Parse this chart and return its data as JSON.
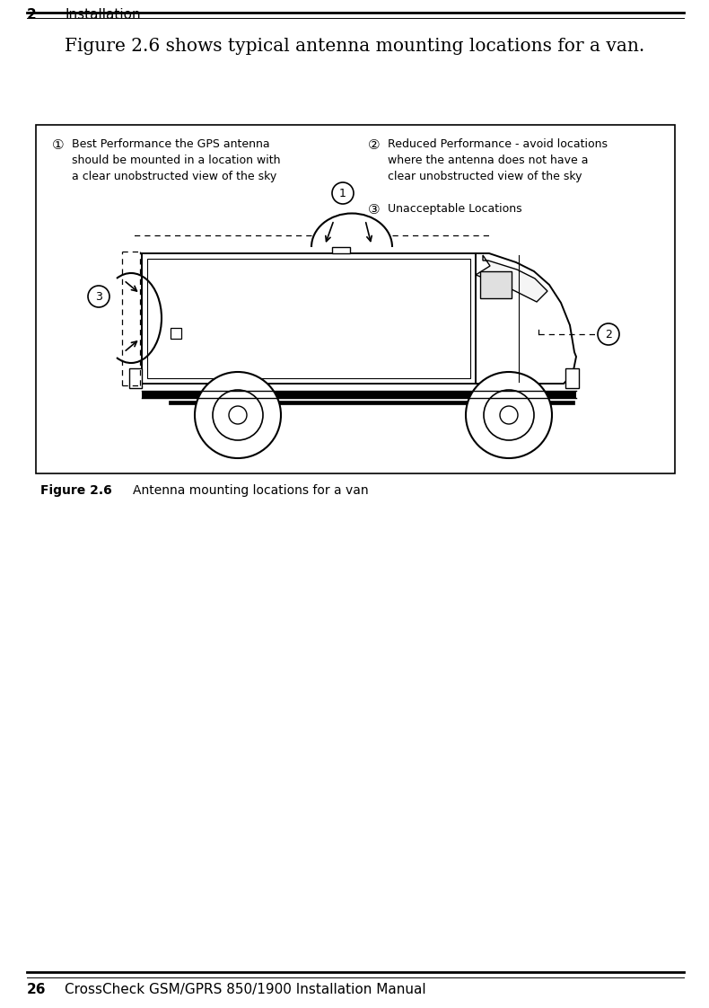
{
  "page_title_number": "2",
  "page_title_text": "Installation",
  "figure_caption": "Figure 2.6 shows typical antenna mounting locations for a van.",
  "legend_1_title": "①",
  "legend_1_text": "Best Performance the GPS antenna\nshould be mounted in a location with\na clear unobstructed view of the sky",
  "legend_2_title": "②",
  "legend_2_text": "Reduced Performance - avoid locations\nwhere the antenna does not have a\nclear unobstructed view of the sky",
  "legend_3_title": "③",
  "legend_3_text": "Unacceptable Locations",
  "figure_label": "Figure 2.6",
  "figure_label_text": "Antenna mounting locations for a van",
  "footer_number": "26",
  "footer_text": "CrossCheck GSM/GPRS 850/1900 Installation Manual",
  "bg_color": "#ffffff",
  "text_color": "#000000"
}
